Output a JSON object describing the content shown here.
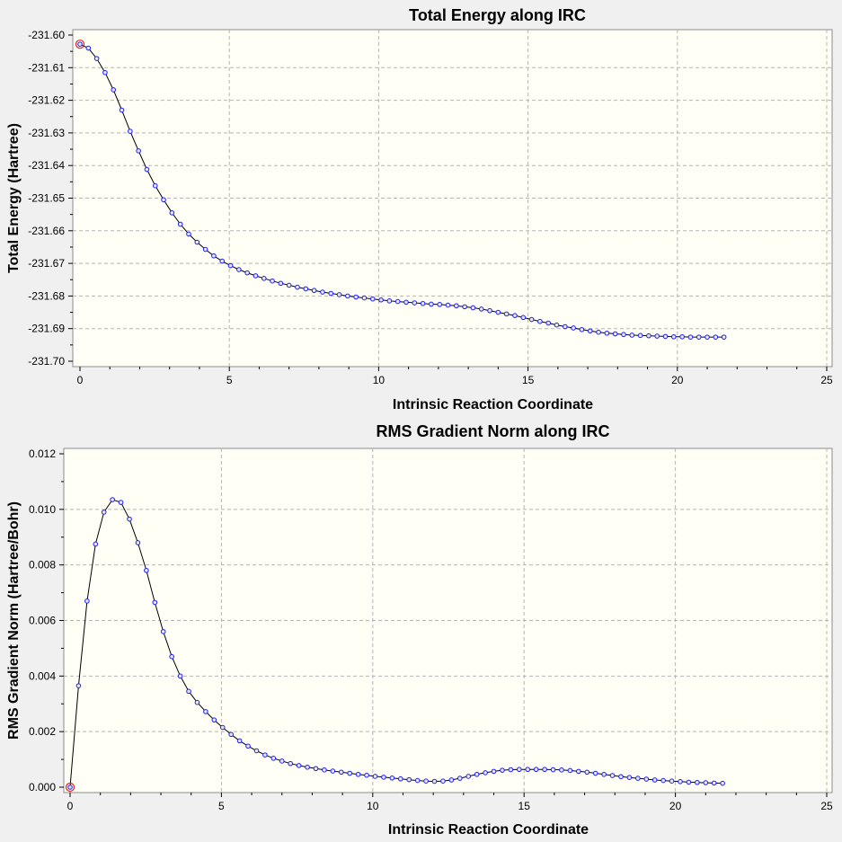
{
  "chart_data": [
    {
      "type": "line",
      "title": "Total Energy along IRC",
      "xlabel": "Intrinsic Reaction Coordinate",
      "ylabel": "Total Energy (Hartree)",
      "xlim": [
        0,
        25
      ],
      "ylim": [
        -231.7,
        -231.6
      ],
      "y_inverted": true,
      "x_ticks": [
        0,
        5,
        10,
        15,
        20,
        25
      ],
      "y_ticks": [
        "-231.60",
        "-231.61",
        "-231.62",
        "-231.63",
        "-231.64",
        "-231.65",
        "-231.66",
        "-231.67",
        "-231.68",
        "-231.69",
        "-231.70"
      ],
      "y_tick_values": [
        -231.6,
        -231.61,
        -231.62,
        -231.63,
        -231.64,
        -231.65,
        -231.66,
        -231.67,
        -231.68,
        -231.69,
        -231.7
      ],
      "grid": true,
      "highlighted_point_index": 0,
      "colors": {
        "line": "#000000",
        "marker": "#1a1aff",
        "highlight": "#e02020",
        "plot_bg": "#fffff5"
      },
      "series": [
        {
          "x": [
            0,
            0.28,
            0.56,
            0.84,
            1.12,
            1.4,
            1.68,
            1.96,
            2.24,
            2.52,
            2.8,
            3.08,
            3.36,
            3.64,
            3.92,
            4.2,
            4.48,
            4.76,
            5.04,
            5.32,
            5.6,
            5.88,
            6.16,
            6.44,
            6.72,
            7.0,
            7.28,
            7.56,
            7.84,
            8.12,
            8.4,
            8.68,
            8.96,
            9.24,
            9.52,
            9.8,
            10.08,
            10.36,
            10.64,
            10.92,
            11.2,
            11.48,
            11.76,
            12.04,
            12.32,
            12.6,
            12.88,
            13.16,
            13.44,
            13.72,
            14.0,
            14.28,
            14.56,
            14.84,
            15.12,
            15.4,
            15.68,
            15.96,
            16.24,
            16.52,
            16.8,
            17.08,
            17.36,
            17.64,
            17.92,
            18.2,
            18.48,
            18.76,
            19.04,
            19.32,
            19.6,
            19.88,
            20.16,
            20.44,
            20.72,
            21.0,
            21.28,
            21.56
          ],
          "y": [
            -231.6028,
            -231.604,
            -231.6072,
            -231.6115,
            -231.6168,
            -231.623,
            -231.6295,
            -231.6355,
            -231.6412,
            -231.6462,
            -231.6505,
            -231.6545,
            -231.658,
            -231.661,
            -231.6635,
            -231.6657,
            -231.6677,
            -231.6693,
            -231.6707,
            -231.6719,
            -231.6729,
            -231.6738,
            -231.6746,
            -231.6754,
            -231.6761,
            -231.6767,
            -231.6773,
            -231.6778,
            -231.6783,
            -231.6788,
            -231.6792,
            -231.6796,
            -231.68,
            -231.6803,
            -231.6806,
            -231.6809,
            -231.6812,
            -231.6815,
            -231.6817,
            -231.6819,
            -231.6821,
            -231.6823,
            -231.6825,
            -231.6826,
            -231.6828,
            -231.683,
            -231.6833,
            -231.6836,
            -231.684,
            -231.6845,
            -231.685,
            -231.6855,
            -231.686,
            -231.6866,
            -231.6872,
            -231.6878,
            -231.6883,
            -231.6889,
            -231.6894,
            -231.6898,
            -231.6903,
            -231.6907,
            -231.6911,
            -231.6914,
            -231.6916,
            -231.6918,
            -231.692,
            -231.6921,
            -231.6922,
            -231.6923,
            -231.6924,
            -231.6925,
            -231.6925,
            -231.6926,
            -231.6926,
            -231.6926,
            -231.6926,
            -231.6926
          ]
        }
      ]
    },
    {
      "type": "line",
      "title": "RMS Gradient Norm along IRC",
      "xlabel": "Intrinsic Reaction Coordinate",
      "ylabel": "RMS Gradient Norm (Hartree/Bohr)",
      "xlim": [
        0,
        25
      ],
      "ylim": [
        0,
        0.012
      ],
      "y_inverted": false,
      "x_ticks": [
        0,
        5,
        10,
        15,
        20,
        25
      ],
      "y_ticks": [
        "0.000",
        "0.002",
        "0.004",
        "0.006",
        "0.008",
        "0.010",
        "0.012"
      ],
      "y_tick_values": [
        0,
        0.002,
        0.004,
        0.006,
        0.008,
        0.01,
        0.012
      ],
      "grid": true,
      "highlighted_point_index": 0,
      "colors": {
        "line": "#000000",
        "marker": "#1a1aff",
        "highlight": "#e02020",
        "plot_bg": "#fffff5"
      },
      "series": [
        {
          "x": [
            0,
            0.28,
            0.56,
            0.84,
            1.12,
            1.4,
            1.68,
            1.96,
            2.24,
            2.52,
            2.8,
            3.08,
            3.36,
            3.64,
            3.92,
            4.2,
            4.48,
            4.76,
            5.04,
            5.32,
            5.6,
            5.88,
            6.16,
            6.44,
            6.72,
            7.0,
            7.28,
            7.56,
            7.84,
            8.12,
            8.4,
            8.68,
            8.96,
            9.24,
            9.52,
            9.8,
            10.08,
            10.36,
            10.64,
            10.92,
            11.2,
            11.48,
            11.76,
            12.04,
            12.32,
            12.6,
            12.88,
            13.16,
            13.44,
            13.72,
            14.0,
            14.28,
            14.56,
            14.84,
            15.12,
            15.4,
            15.68,
            15.96,
            16.24,
            16.52,
            16.8,
            17.08,
            17.36,
            17.64,
            17.92,
            18.2,
            18.48,
            18.76,
            19.04,
            19.32,
            19.6,
            19.88,
            20.16,
            20.44,
            20.72,
            21.0,
            21.28,
            21.56
          ],
          "y": [
            0.0,
            0.00365,
            0.0067,
            0.00875,
            0.0099,
            0.01035,
            0.01025,
            0.00965,
            0.0088,
            0.0078,
            0.00665,
            0.0056,
            0.0047,
            0.004,
            0.00345,
            0.00305,
            0.00272,
            0.00242,
            0.00215,
            0.0019,
            0.00167,
            0.00148,
            0.00131,
            0.00116,
            0.00104,
            0.00094,
            0.00085,
            0.00078,
            0.00072,
            0.00067,
            0.00062,
            0.00058,
            0.00054,
            0.0005,
            0.00046,
            0.00043,
            0.00039,
            0.00036,
            0.00033,
            0.0003,
            0.00027,
            0.00024,
            0.00022,
            0.00021,
            0.00022,
            0.00026,
            0.00032,
            0.00039,
            0.00046,
            0.00052,
            0.00057,
            0.00061,
            0.00063,
            0.00064,
            0.00064,
            0.00064,
            0.00064,
            0.00063,
            0.00062,
            0.0006,
            0.00057,
            0.00054,
            0.0005,
            0.00046,
            0.00042,
            0.00038,
            0.00035,
            0.00032,
            0.00029,
            0.00026,
            0.00024,
            0.00022,
            0.0002,
            0.00018,
            0.00017,
            0.00016,
            0.00015,
            0.00014
          ]
        }
      ]
    }
  ]
}
